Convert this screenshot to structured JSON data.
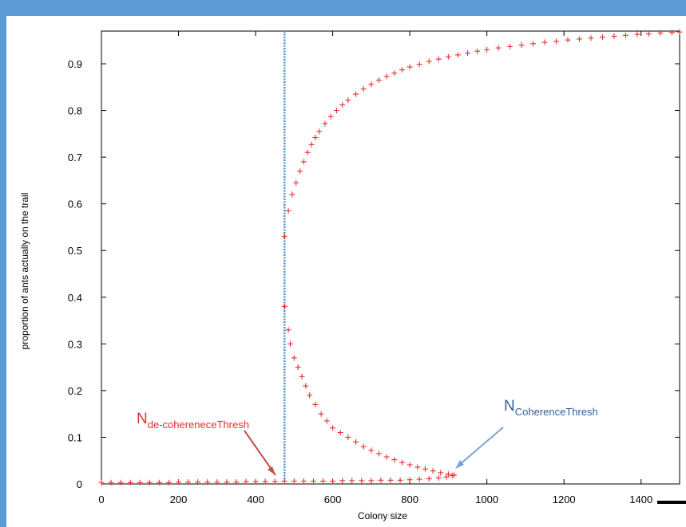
{
  "chart_data": {
    "type": "scatter",
    "title": "",
    "xlabel": "Colony size",
    "ylabel": "proportion of ants actually on the trail",
    "xlim": [
      0,
      1500
    ],
    "ylim": [
      0,
      0.97
    ],
    "x_ticks": [
      "0",
      "200",
      "400",
      "600",
      "800",
      "1000",
      "1200",
      "1400"
    ],
    "y_ticks": [
      "0",
      "0.1",
      "0.2",
      "0.3",
      "0.4",
      "0.5",
      "0.6",
      "0.7",
      "0.8",
      "0.9"
    ],
    "threshold_line_x": 475,
    "colors": {
      "points": "#e53030",
      "threshold_line": "#4a90d9",
      "left_annotation": "#e0302a",
      "right_annotation": "#2f5f9e",
      "frame": "#5c9bd6"
    },
    "annotations": [
      {
        "main": "N",
        "sub": "de-cohereneceThresh",
        "color": "#e0302a",
        "points_to": [
          470,
          0.01
        ]
      },
      {
        "main": "N",
        "sub": "CoherenceThresh",
        "color": "#2f5f9e",
        "points_to": [
          910,
          0.02
        ]
      }
    ],
    "series": [
      {
        "branch": "lower",
        "points": [
          [
            0,
            0.003
          ],
          [
            25,
            0.003
          ],
          [
            50,
            0.003
          ],
          [
            75,
            0.003
          ],
          [
            100,
            0.003
          ],
          [
            125,
            0.003
          ],
          [
            150,
            0.003
          ],
          [
            175,
            0.003
          ],
          [
            200,
            0.004
          ],
          [
            225,
            0.004
          ],
          [
            250,
            0.004
          ],
          [
            275,
            0.004
          ],
          [
            300,
            0.004
          ],
          [
            325,
            0.004
          ],
          [
            350,
            0.004
          ],
          [
            375,
            0.005
          ],
          [
            400,
            0.005
          ],
          [
            425,
            0.005
          ],
          [
            450,
            0.005
          ],
          [
            475,
            0.006
          ],
          [
            500,
            0.006
          ],
          [
            525,
            0.006
          ],
          [
            550,
            0.006
          ],
          [
            575,
            0.006
          ],
          [
            600,
            0.006
          ],
          [
            625,
            0.007
          ],
          [
            650,
            0.007
          ],
          [
            675,
            0.007
          ],
          [
            700,
            0.007
          ],
          [
            725,
            0.008
          ],
          [
            750,
            0.008
          ],
          [
            775,
            0.008
          ],
          [
            800,
            0.009
          ],
          [
            825,
            0.01
          ],
          [
            850,
            0.011
          ],
          [
            875,
            0.013
          ],
          [
            895,
            0.015
          ],
          [
            910,
            0.018
          ]
        ]
      },
      {
        "branch": "unstable",
        "points": [
          [
            475,
            0.38
          ],
          [
            485,
            0.33
          ],
          [
            490,
            0.3
          ],
          [
            500,
            0.27
          ],
          [
            510,
            0.25
          ],
          [
            520,
            0.23
          ],
          [
            530,
            0.21
          ],
          [
            540,
            0.19
          ],
          [
            555,
            0.17
          ],
          [
            570,
            0.15
          ],
          [
            585,
            0.135
          ],
          [
            600,
            0.12
          ],
          [
            620,
            0.11
          ],
          [
            640,
            0.1
          ],
          [
            660,
            0.09
          ],
          [
            680,
            0.08
          ],
          [
            700,
            0.072
          ],
          [
            720,
            0.065
          ],
          [
            740,
            0.058
          ],
          [
            760,
            0.052
          ],
          [
            780,
            0.046
          ],
          [
            800,
            0.041
          ],
          [
            820,
            0.036
          ],
          [
            840,
            0.032
          ],
          [
            860,
            0.028
          ],
          [
            880,
            0.024
          ],
          [
            900,
            0.021
          ],
          [
            915,
            0.019
          ]
        ]
      },
      {
        "branch": "upper",
        "points": [
          [
            475,
            0.53
          ],
          [
            485,
            0.585
          ],
          [
            495,
            0.62
          ],
          [
            505,
            0.645
          ],
          [
            515,
            0.67
          ],
          [
            525,
            0.69
          ],
          [
            535,
            0.71
          ],
          [
            545,
            0.727
          ],
          [
            555,
            0.742
          ],
          [
            565,
            0.755
          ],
          [
            580,
            0.772
          ],
          [
            595,
            0.787
          ],
          [
            610,
            0.8
          ],
          [
            625,
            0.812
          ],
          [
            640,
            0.822
          ],
          [
            660,
            0.835
          ],
          [
            680,
            0.846
          ],
          [
            700,
            0.856
          ],
          [
            720,
            0.865
          ],
          [
            740,
            0.873
          ],
          [
            760,
            0.88
          ],
          [
            780,
            0.887
          ],
          [
            800,
            0.893
          ],
          [
            825,
            0.899
          ],
          [
            850,
            0.905
          ],
          [
            875,
            0.91
          ],
          [
            900,
            0.915
          ],
          [
            925,
            0.919
          ],
          [
            950,
            0.923
          ],
          [
            975,
            0.927
          ],
          [
            1000,
            0.93
          ],
          [
            1030,
            0.934
          ],
          [
            1060,
            0.937
          ],
          [
            1090,
            0.94
          ],
          [
            1120,
            0.943
          ],
          [
            1150,
            0.946
          ],
          [
            1180,
            0.948
          ],
          [
            1210,
            0.951
          ],
          [
            1240,
            0.953
          ],
          [
            1270,
            0.955
          ],
          [
            1300,
            0.957
          ],
          [
            1330,
            0.959
          ],
          [
            1360,
            0.961
          ],
          [
            1390,
            0.963
          ],
          [
            1420,
            0.964
          ],
          [
            1450,
            0.966
          ],
          [
            1480,
            0.967
          ],
          [
            1500,
            0.968
          ]
        ]
      }
    ]
  }
}
